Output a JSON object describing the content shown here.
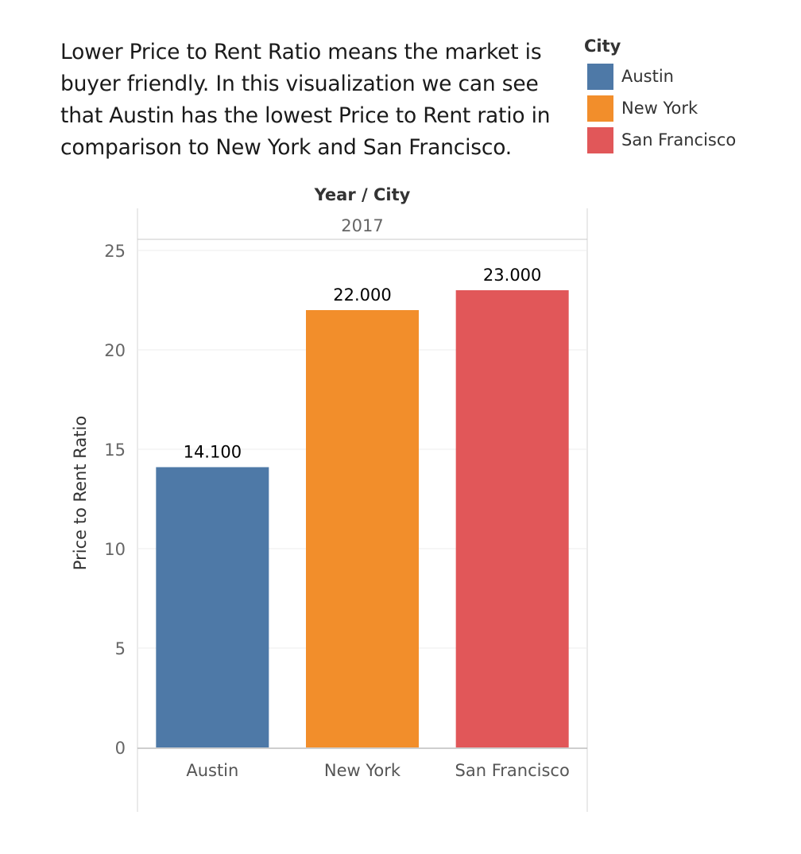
{
  "caption": {
    "lines": [
      "Lower Price to Rent Ratio means the market is",
      "buyer friendly. In this visualization we can see",
      "that Austin has the lowest Price to Rent ratio in",
      "comparison to New York and San Francisco."
    ]
  },
  "legend": {
    "title": "City",
    "items": [
      {
        "label": "Austin",
        "color": "#4e79a7"
      },
      {
        "label": "New York",
        "color": "#f28e2b"
      },
      {
        "label": "San Francisco",
        "color": "#e15759"
      }
    ]
  },
  "chart_data": {
    "type": "bar",
    "header_title": "Year / City",
    "column_header": "2017",
    "categories": [
      "Austin",
      "New York",
      "San Francisco"
    ],
    "values": [
      14.1,
      22.0,
      23.0
    ],
    "data_labels": [
      "14.100",
      "22.000",
      "23.000"
    ],
    "colors": [
      "#4e79a7",
      "#f28e2b",
      "#e15759"
    ],
    "ylabel": "Price to Rent Ratio",
    "ylim": [
      0,
      25
    ],
    "yticks": [
      0,
      5,
      10,
      15,
      20,
      25
    ],
    "grid": true
  }
}
